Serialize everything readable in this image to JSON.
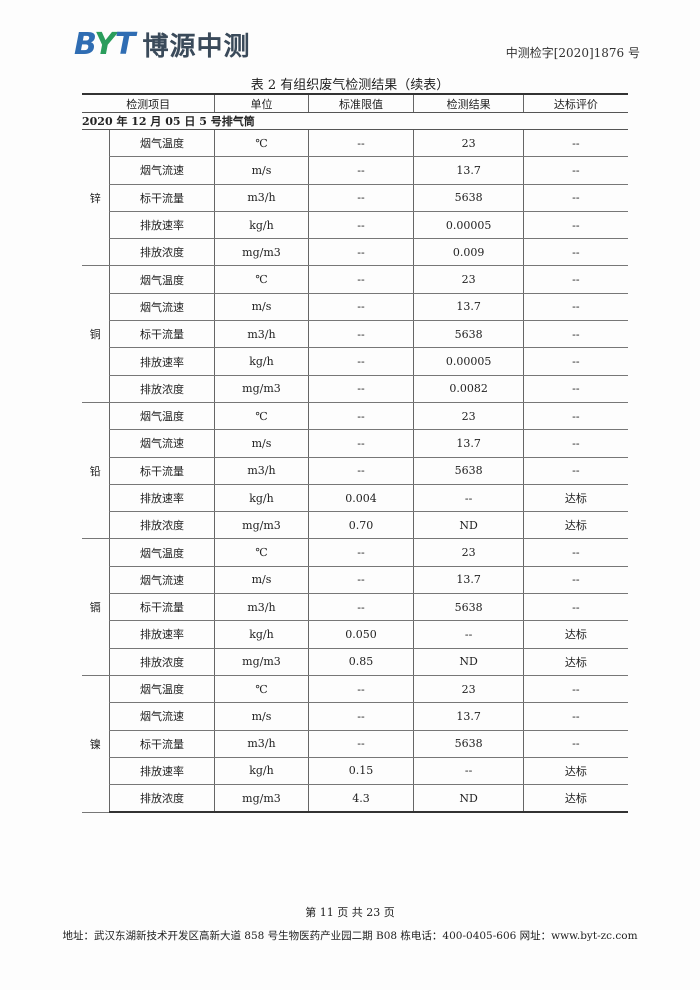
{
  "header": {
    "logo_mark": "BYT",
    "logo_text": "博源中测",
    "doc_number": "中测检字[2020]1876 号"
  },
  "table": {
    "title": "表 2  有组织废气检测结果（续表）",
    "columns": [
      "检测项目",
      "单位",
      "标准限值",
      "检测结果",
      "达标评价"
    ],
    "date_row": "2020 年 12 月 05 日    5 号排气筒",
    "groups": [
      {
        "name": "锌",
        "rows": [
          [
            "烟气温度",
            "℃",
            "--",
            "23",
            "--"
          ],
          [
            "烟气流速",
            "m/s",
            "--",
            "13.7",
            "--"
          ],
          [
            "标干流量",
            "m3/h",
            "--",
            "5638",
            "--"
          ],
          [
            "排放速率",
            "kg/h",
            "--",
            "0.00005",
            "--"
          ],
          [
            "排放浓度",
            "mg/m3",
            "--",
            "0.009",
            "--"
          ]
        ]
      },
      {
        "name": "铜",
        "rows": [
          [
            "烟气温度",
            "℃",
            "--",
            "23",
            "--"
          ],
          [
            "烟气流速",
            "m/s",
            "--",
            "13.7",
            "--"
          ],
          [
            "标干流量",
            "m3/h",
            "--",
            "5638",
            "--"
          ],
          [
            "排放速率",
            "kg/h",
            "--",
            "0.00005",
            "--"
          ],
          [
            "排放浓度",
            "mg/m3",
            "--",
            "0.0082",
            "--"
          ]
        ]
      },
      {
        "name": "铅",
        "rows": [
          [
            "烟气温度",
            "℃",
            "--",
            "23",
            "--"
          ],
          [
            "烟气流速",
            "m/s",
            "--",
            "13.7",
            "--"
          ],
          [
            "标干流量",
            "m3/h",
            "--",
            "5638",
            "--"
          ],
          [
            "排放速率",
            "kg/h",
            "0.004",
            "--",
            "达标"
          ],
          [
            "排放浓度",
            "mg/m3",
            "0.70",
            "ND",
            "达标"
          ]
        ]
      },
      {
        "name": "镉",
        "rows": [
          [
            "烟气温度",
            "℃",
            "--",
            "23",
            "--"
          ],
          [
            "烟气流速",
            "m/s",
            "--",
            "13.7",
            "--"
          ],
          [
            "标干流量",
            "m3/h",
            "--",
            "5638",
            "--"
          ],
          [
            "排放速率",
            "kg/h",
            "0.050",
            "--",
            "达标"
          ],
          [
            "排放浓度",
            "mg/m3",
            "0.85",
            "ND",
            "达标"
          ]
        ]
      },
      {
        "name": "镍",
        "rows": [
          [
            "烟气温度",
            "℃",
            "--",
            "23",
            "--"
          ],
          [
            "烟气流速",
            "m/s",
            "--",
            "13.7",
            "--"
          ],
          [
            "标干流量",
            "m3/h",
            "--",
            "5638",
            "--"
          ],
          [
            "排放速率",
            "kg/h",
            "0.15",
            "--",
            "达标"
          ],
          [
            "排放浓度",
            "mg/m3",
            "4.3",
            "ND",
            "达标"
          ]
        ]
      }
    ]
  },
  "footer": {
    "page": "第 11 页 共 23 页",
    "address": "地址：武汉东湖新技术开发区高新大道 858 号生物医药产业园二期 B08 栋电话：400-0405-606 网址：www.byt-zc.com"
  }
}
